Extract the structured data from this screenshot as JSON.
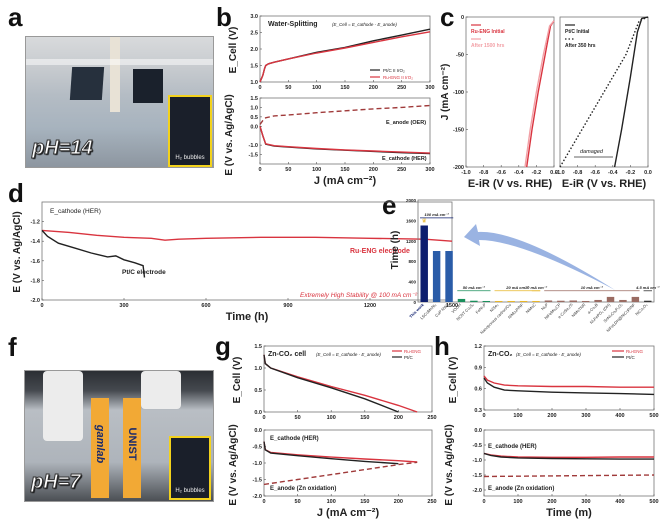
{
  "figure": {
    "panels": {
      "a": {
        "letter": "a",
        "ph_label": "pH=14",
        "inset_label": "H₂ bubbles"
      },
      "f": {
        "letter": "f",
        "ph_label": "pH=7",
        "inset_label": "H₂ bubbles",
        "brand_left": "gamlab",
        "brand_right": "UNIST"
      },
      "b": {
        "letter": "b"
      },
      "c": {
        "letter": "c"
      },
      "d": {
        "letter": "d"
      },
      "e": {
        "letter": "e"
      },
      "g": {
        "letter": "g"
      },
      "h": {
        "letter": "h"
      }
    },
    "colors": {
      "red": "#d9343f",
      "black": "#222222",
      "navy": "#0d1e6e",
      "blue": "#2a5ca8",
      "green": "#1a8f5c",
      "yellow": "#e8b62a",
      "brown": "#9a6b62",
      "arrow": "#6f93d6"
    }
  },
  "chart_data": [
    {
      "id": "b-top",
      "type": "line",
      "title": "Water-Splitting",
      "subtitle": "(E_Cell = E_cathode - E_anode)",
      "xlabel": "",
      "ylabel": "E_Cell (V)",
      "xlim": [
        0,
        300
      ],
      "ylim": [
        1.0,
        3.0
      ],
      "xticks": [
        "0",
        "50",
        "100",
        "150",
        "200",
        "250",
        "300"
      ],
      "yticks": [
        "1.0",
        "1.5",
        "2.0",
        "2.5",
        "3.0"
      ],
      "legend": "bottom-right",
      "series": [
        {
          "name": "Pt/C II IrO₂",
          "color": "#222222",
          "x": [
            0,
            5,
            8,
            10,
            15,
            25,
            50,
            100,
            150,
            200,
            250,
            300
          ],
          "y": [
            1.0,
            1.2,
            1.4,
            1.5,
            1.55,
            1.6,
            1.7,
            1.9,
            2.05,
            2.25,
            2.42,
            2.6
          ]
        },
        {
          "name": "Ru-ENG II IrO₂",
          "color": "#d9343f",
          "x": [
            0,
            5,
            8,
            10,
            15,
            25,
            50,
            100,
            150,
            200,
            250,
            300
          ],
          "y": [
            1.0,
            1.2,
            1.4,
            1.5,
            1.55,
            1.6,
            1.7,
            1.88,
            2.03,
            2.2,
            2.37,
            2.52
          ]
        }
      ]
    },
    {
      "id": "b-bottom",
      "type": "line",
      "xlabel": "J (mA cm⁻²)",
      "ylabel": "E (V vs. Ag/AgCl)",
      "xlim": [
        0,
        300
      ],
      "ylim": [
        -2.0,
        1.5
      ],
      "xticks": [
        "0",
        "50",
        "100",
        "150",
        "200",
        "250",
        "300"
      ],
      "yticks": [
        "-1.5",
        "-1.0",
        "0.0",
        "0.5",
        "1.0",
        "1.5"
      ],
      "annotations": [
        "E_anode (OER)",
        "E_cathode (HER)"
      ],
      "series": [
        {
          "name": "E_anode (OER)",
          "style": "dashed",
          "color": "#a03a3a",
          "x": [
            0,
            5,
            10,
            25,
            50,
            100,
            150,
            200,
            250,
            300
          ],
          "y": [
            0.1,
            0.3,
            0.45,
            0.55,
            0.6,
            0.72,
            0.82,
            0.92,
            1.0,
            1.1
          ]
        },
        {
          "name": "Pt/C cathode",
          "color": "#222222",
          "x": [
            0,
            5,
            10,
            25,
            50,
            100,
            150,
            200,
            250,
            300
          ],
          "y": [
            0.0,
            -0.5,
            -0.95,
            -1.05,
            -1.1,
            -1.2,
            -1.27,
            -1.33,
            -1.4,
            -1.45
          ]
        },
        {
          "name": "Ru-ENG cathode",
          "color": "#d9343f",
          "x": [
            0,
            5,
            10,
            25,
            50,
            100,
            150,
            200,
            250,
            300
          ],
          "y": [
            0.0,
            -0.5,
            -0.93,
            -1.03,
            -1.08,
            -1.18,
            -1.25,
            -1.31,
            -1.37,
            -1.42
          ]
        }
      ]
    },
    {
      "id": "c-left",
      "type": "line",
      "xlabel": "E-iR (V vs. RHE)",
      "ylabel": "J (mA cm⁻²)",
      "xlim": [
        -1.0,
        0.0
      ],
      "ylim": [
        -200,
        0
      ],
      "xticks": [
        "-1.0",
        "-0.8",
        "-0.6",
        "-0.4",
        "-0.2",
        "0.0"
      ],
      "yticks": [
        "0",
        "-50",
        "-100",
        "-150",
        "-200"
      ],
      "legend": "top-left",
      "series": [
        {
          "name": "Ru-ENG Initial",
          "color": "#d9343f",
          "x": [
            -0.31,
            -0.25,
            -0.18,
            -0.1,
            -0.04,
            0.0
          ],
          "y": [
            -200,
            -150,
            -100,
            -50,
            -12,
            -5
          ]
        },
        {
          "name": "After 1500 hrs",
          "color": "#f2a0a6",
          "x": [
            -0.33,
            -0.27,
            -0.2,
            -0.12,
            -0.05,
            0.0
          ],
          "y": [
            -200,
            -150,
            -100,
            -50,
            -12,
            -5
          ]
        }
      ]
    },
    {
      "id": "c-right",
      "type": "line",
      "xlabel": "E-iR (V vs. RHE)",
      "ylabel": "",
      "xlim": [
        -1.0,
        0.0
      ],
      "ylim": [
        -200,
        0
      ],
      "xticks": [
        "-1.0",
        "-0.8",
        "-0.6",
        "-0.4",
        "-0.2",
        "0.0"
      ],
      "legend": "top-left",
      "annotations": [
        "damaged"
      ],
      "series": [
        {
          "name": "Pt/C Initial",
          "style": "solid",
          "color": "#222222",
          "x": [
            -0.38,
            -0.3,
            -0.2,
            -0.12,
            -0.07,
            0.0
          ],
          "y": [
            -200,
            -150,
            -80,
            -20,
            -2,
            0
          ]
        },
        {
          "name": "After 350 hrs",
          "style": "dotted",
          "color": "#222222",
          "x": [
            -1.0,
            -0.75,
            -0.5,
            -0.25,
            -0.1,
            0.0
          ],
          "y": [
            -200,
            -150,
            -100,
            -50,
            -5,
            0
          ]
        }
      ]
    },
    {
      "id": "d",
      "type": "line",
      "xlabel": "Time (h)",
      "ylabel": "E (V vs. Ag/AgCl)",
      "xlim": [
        0,
        1500
      ],
      "ylim": [
        -2.0,
        -1.0
      ],
      "xticks": [
        "0",
        "300",
        "600",
        "900",
        "1200",
        "1500"
      ],
      "yticks": [
        "-1.2",
        "-1.4",
        "-1.6",
        "-1.8",
        "-2.0"
      ],
      "annotations": [
        "E_cathode (HER)",
        "Pt/C electrode",
        "Ru-ENG electrode",
        "Extremely High Stability @ 100 mA cm⁻²"
      ],
      "series": [
        {
          "name": "Ru-ENG electrode",
          "color": "#d9343f",
          "x": [
            0,
            100,
            200,
            300,
            400,
            450,
            500,
            600,
            800,
            1000,
            1200,
            1400,
            1500
          ],
          "y": [
            -1.29,
            -1.31,
            -1.34,
            -1.36,
            -1.37,
            -1.39,
            -1.38,
            -1.37,
            -1.36,
            -1.36,
            -1.37,
            -1.38,
            -1.4
          ]
        },
        {
          "name": "Pt/C electrode",
          "color": "#222222",
          "x": [
            0,
            20,
            60,
            120,
            180,
            240,
            270,
            300,
            340,
            370,
            375
          ],
          "y": [
            -1.29,
            -1.35,
            -1.42,
            -1.47,
            -1.52,
            -1.56,
            -1.55,
            -1.59,
            -1.62,
            -1.65,
            -1.77
          ]
        }
      ]
    },
    {
      "id": "e",
      "type": "bar",
      "xlabel": "",
      "ylabel": "Time (h)",
      "ylim": [
        0,
        2000
      ],
      "yticks": [
        "0",
        "400",
        "800",
        "1200",
        "1600",
        "2000"
      ],
      "groups": [
        "100 mA cm⁻²",
        "50 mA cm⁻²",
        "20 mA cm⁻²",
        "10 mA cm⁻²",
        "10 mA cm⁻²",
        "4.5 mA cm⁻²"
      ],
      "categories": [
        "This work",
        "LSCoMnNi₂",
        "CoP NWs",
        "VOOH",
        "NCNT CoₓSᵧ",
        "FeNi₃P",
        "NiSe₂",
        "Nanoporous carbon/Cu",
        "NiMoₓP/NF",
        "NiMoC",
        "NiₓP",
        "NiFeMoₓCP",
        "e-CoSe₂/Ti",
        "NiMoTNR",
        "a-Co₂B",
        "NiₓFePO₄ (OH)",
        "SnNiₓCoₓP₂O₇",
        "NiFeLDH@NiCoP/NF",
        "NiCo₂O₄"
      ],
      "values": [
        1500,
        1000,
        1000,
        60,
        25,
        20,
        20,
        20,
        20,
        20,
        30,
        25,
        30,
        20,
        40,
        100,
        40,
        100,
        25
      ],
      "bar_colors": [
        "#0d1e6e",
        "#2a5ca8",
        "#2a5ca8",
        "#1a8f5c",
        "#1a8f5c",
        "#1a8f5c",
        "#e8b62a",
        "#e8b62a",
        "#e8b62a",
        "#e8b62a",
        "#9a6b62",
        "#9a6b62",
        "#9a6b62",
        "#9a6b62",
        "#9a6b62",
        "#9a6b62",
        "#9a6b62",
        "#9a6b62",
        "#333333"
      ]
    },
    {
      "id": "g-top",
      "type": "line",
      "title": "Zn-CO₂ cell",
      "subtitle": "(E_Cell = E_cathode - E_anode)",
      "ylabel": "E_Cell (V)",
      "xlim": [
        0,
        250
      ],
      "ylim": [
        0.0,
        1.5
      ],
      "xticks": [
        "0",
        "50",
        "100",
        "150",
        "200",
        "250"
      ],
      "yticks": [
        "0.0",
        "0.5",
        "1.0",
        "1.5"
      ],
      "legend": "top-right",
      "series": [
        {
          "name": "Ru-ENG",
          "color": "#d9343f",
          "x": [
            0,
            2,
            10,
            50,
            100,
            150,
            200,
            228
          ],
          "y": [
            1.3,
            1.1,
            1.0,
            0.8,
            0.58,
            0.38,
            0.15,
            0.0
          ]
        },
        {
          "name": "Pt/C",
          "color": "#222222",
          "x": [
            0,
            2,
            10,
            50,
            100,
            150,
            200
          ],
          "y": [
            1.3,
            1.1,
            1.0,
            0.78,
            0.55,
            0.3,
            0.0
          ]
        }
      ]
    },
    {
      "id": "g-bottom",
      "type": "line",
      "xlabel": "J (mA cm⁻²)",
      "ylabel": "E (V vs. Ag/AgCl)",
      "xlim": [
        0,
        250
      ],
      "ylim": [
        -2.0,
        0.0
      ],
      "xticks": [
        "0",
        "50",
        "100",
        "150",
        "200",
        "250"
      ],
      "yticks": [
        "0.0",
        "-0.5",
        "-1.0",
        "-1.5",
        "-2.0"
      ],
      "annotations": [
        "E_cathode (HER)",
        "E_anode (Zn oxidation)"
      ],
      "series": [
        {
          "name": "Ru-ENG cathode",
          "color": "#d9343f",
          "x": [
            0,
            2,
            10,
            50,
            100,
            150,
            200,
            228
          ],
          "y": [
            -0.35,
            -0.6,
            -0.68,
            -0.75,
            -0.82,
            -0.88,
            -0.93,
            -0.97
          ]
        },
        {
          "name": "Pt/C cathode",
          "color": "#222222",
          "x": [
            0,
            2,
            10,
            50,
            100,
            150,
            200
          ],
          "y": [
            -0.35,
            -0.6,
            -0.7,
            -0.78,
            -0.87,
            -0.95,
            -1.02
          ]
        },
        {
          "name": "E_anode",
          "style": "dashed",
          "color": "#a03a3a",
          "x": [
            0,
            50,
            100,
            150,
            200,
            228
          ],
          "y": [
            -1.65,
            -1.5,
            -1.35,
            -1.2,
            -1.05,
            -0.98
          ]
        }
      ]
    },
    {
      "id": "h-top",
      "type": "line",
      "title": "Zn-CO₂",
      "subtitle": "(E_Cell = E_cathode - E_anode)",
      "ylabel": "E_Cell (V)",
      "xlim": [
        0,
        500
      ],
      "ylim": [
        0.3,
        1.2
      ],
      "xticks": [
        "0",
        "100",
        "200",
        "300",
        "400",
        "500"
      ],
      "yticks": [
        "0.3",
        "0.6",
        "0.9",
        "1.2"
      ],
      "legend": "top-right",
      "series": [
        {
          "name": "Ru-ENG",
          "color": "#d9343f",
          "x": [
            0,
            10,
            30,
            60,
            100,
            200,
            300,
            400,
            500
          ],
          "y": [
            0.78,
            0.72,
            0.68,
            0.65,
            0.64,
            0.63,
            0.63,
            0.62,
            0.62
          ]
        },
        {
          "name": "Pt/C",
          "color": "#222222",
          "x": [
            0,
            10,
            30,
            60,
            100,
            200,
            300,
            400,
            500
          ],
          "y": [
            0.75,
            0.68,
            0.62,
            0.58,
            0.57,
            0.55,
            0.54,
            0.53,
            0.52
          ]
        }
      ]
    },
    {
      "id": "h-bottom",
      "type": "line",
      "xlabel": "Time (m)",
      "ylabel": "E (V vs. Ag/AgCl)",
      "xlim": [
        0,
        500
      ],
      "ylim": [
        -2.2,
        0.0
      ],
      "xticks": [
        "0",
        "100",
        "200",
        "300",
        "400",
        "500"
      ],
      "yticks": [
        "0.0",
        "-0.5",
        "-1.0",
        "-1.5",
        "-2.0"
      ],
      "annotations": [
        "E_cathode (HER)",
        "E_anode (Zn oxidation)"
      ],
      "series": [
        {
          "name": "Ru-ENG cathode",
          "color": "#d9343f",
          "x": [
            0,
            20,
            50,
            100,
            200,
            300,
            400,
            500
          ],
          "y": [
            -0.78,
            -0.83,
            -0.87,
            -0.9,
            -0.91,
            -0.91,
            -0.9,
            -0.9
          ]
        },
        {
          "name": "Pt/C cathode",
          "color": "#222222",
          "x": [
            0,
            20,
            50,
            100,
            200,
            300,
            400,
            500
          ],
          "y": [
            -0.78,
            -0.85,
            -0.9,
            -0.93,
            -0.95,
            -0.96,
            -0.97,
            -0.97
          ]
        },
        {
          "name": "E_anode",
          "style": "dashed",
          "color": "#a03a3a",
          "x": [
            0,
            100,
            200,
            300,
            400,
            500
          ],
          "y": [
            -1.55,
            -1.54,
            -1.53,
            -1.52,
            -1.51,
            -1.5
          ]
        }
      ]
    }
  ]
}
